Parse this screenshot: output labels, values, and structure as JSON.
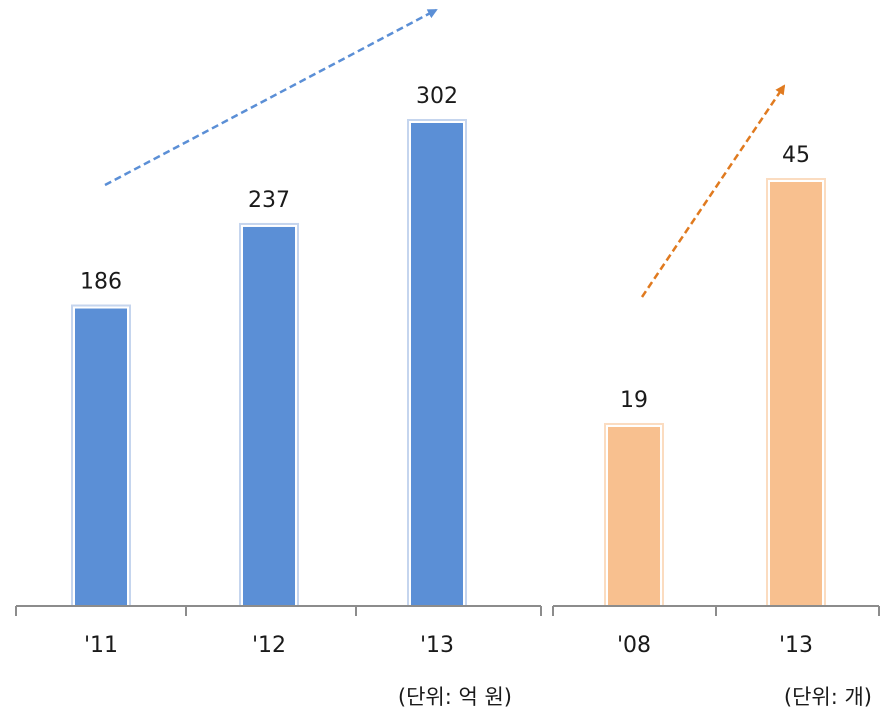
{
  "chart_data": [
    {
      "type": "bar",
      "categories": [
        "'11",
        "'12",
        "'13"
      ],
      "values": [
        186,
        237,
        302
      ],
      "unit_label": "(단위: 억 원)",
      "title": "",
      "xlabel": "",
      "ylabel": "",
      "ylim": [
        0,
        380
      ],
      "grid": false,
      "legend": "none",
      "bar_color": "#5b8fd6",
      "bar_border_color": "#c5d5ee",
      "arrow_color": "#5b8fd6"
    },
    {
      "type": "bar",
      "categories": [
        "'08",
        "'13"
      ],
      "values": [
        19,
        45
      ],
      "unit_label": "(단위: 개)",
      "title": "",
      "xlabel": "",
      "ylabel": "",
      "ylim": [
        0,
        55
      ],
      "grid": false,
      "legend": "none",
      "bar_color": "#f8c08f",
      "bar_border_color": "#fbdcc0",
      "arrow_color": "#e07a1f"
    }
  ]
}
